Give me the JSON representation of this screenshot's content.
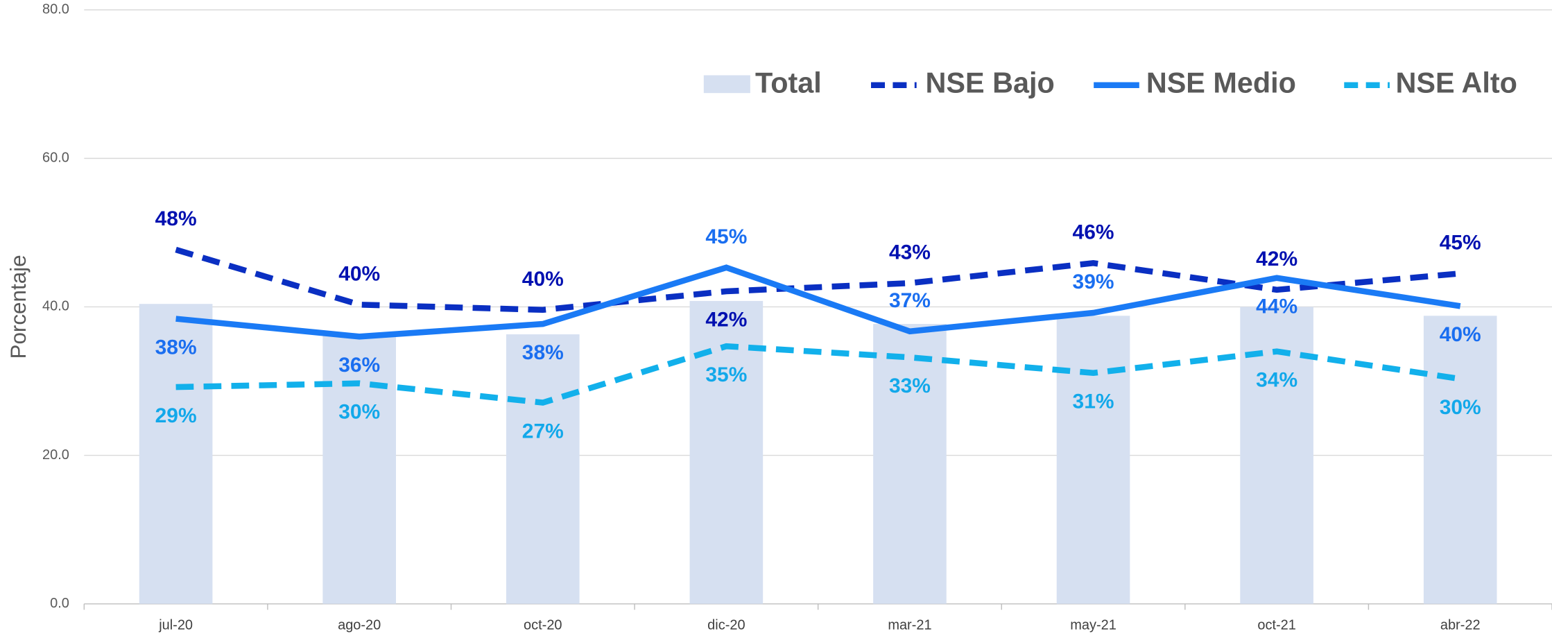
{
  "chart_data": {
    "type": "bar-line",
    "y_label": "Porcentaje",
    "categories": [
      "jul-20",
      "ago-20",
      "oct-20",
      "dic-20",
      "mar-21",
      "may-21",
      "oct-21",
      "abr-22"
    ],
    "ylim": [
      0,
      80
    ],
    "yticks": [
      {
        "value": 0,
        "label": "0.0"
      },
      {
        "value": 20,
        "label": "20.0"
      },
      {
        "value": 40,
        "label": "40.0"
      },
      {
        "value": 60,
        "label": "60.0"
      },
      {
        "value": 80,
        "label": "80.0"
      }
    ],
    "grid": true,
    "legend": "top-right",
    "series": [
      {
        "name": "Total",
        "type": "bar",
        "color": "#d6e0f1",
        "values": [
          40.4,
          36.4,
          36.3,
          40.8,
          37.7,
          38.8,
          40.0,
          38.8
        ]
      },
      {
        "name": "NSE Bajo",
        "type": "line",
        "style": "dashed",
        "color": "#0a2fc2",
        "label_color": "#0010b0",
        "values": [
          47.7,
          40.3,
          39.6,
          42.1,
          43.2,
          45.9,
          42.3,
          44.5
        ],
        "value_labels": [
          "48%",
          "40%",
          "40%",
          "42%",
          "43%",
          "46%",
          "42%",
          "45%"
        ]
      },
      {
        "name": "NSE Medio",
        "type": "line",
        "style": "solid",
        "color": "#1a7af5",
        "label_color": "#1a6ef0",
        "values": [
          38.4,
          36.0,
          37.7,
          45.3,
          36.7,
          39.2,
          43.9,
          40.1
        ],
        "value_labels": [
          "38%",
          "36%",
          "38%",
          "45%",
          "37%",
          "39%",
          "44%",
          "40%"
        ]
      },
      {
        "name": "NSE Alto",
        "type": "line",
        "style": "dashed",
        "color": "#12b0eb",
        "label_color": "#12a8ea",
        "values": [
          29.2,
          29.7,
          27.1,
          34.7,
          33.2,
          31.1,
          34.0,
          30.3
        ],
        "value_labels": [
          "29%",
          "30%",
          "27%",
          "35%",
          "33%",
          "31%",
          "34%",
          "30%"
        ]
      }
    ]
  }
}
